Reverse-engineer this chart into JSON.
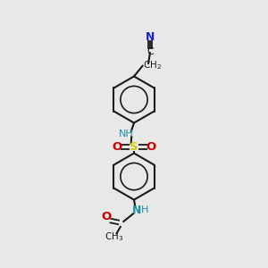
{
  "background_color": "#e8e8e8",
  "bond_color": "#1a1a1a",
  "atom_colors": {
    "N_blue": "#2020cc",
    "N_teal": "#2090a0",
    "O": "#cc0000",
    "S": "#cccc00",
    "C": "#1a1a1a"
  },
  "figsize": [
    3.0,
    3.0
  ],
  "dpi": 100,
  "xlim": [
    0,
    10
  ],
  "ylim": [
    0,
    13
  ]
}
